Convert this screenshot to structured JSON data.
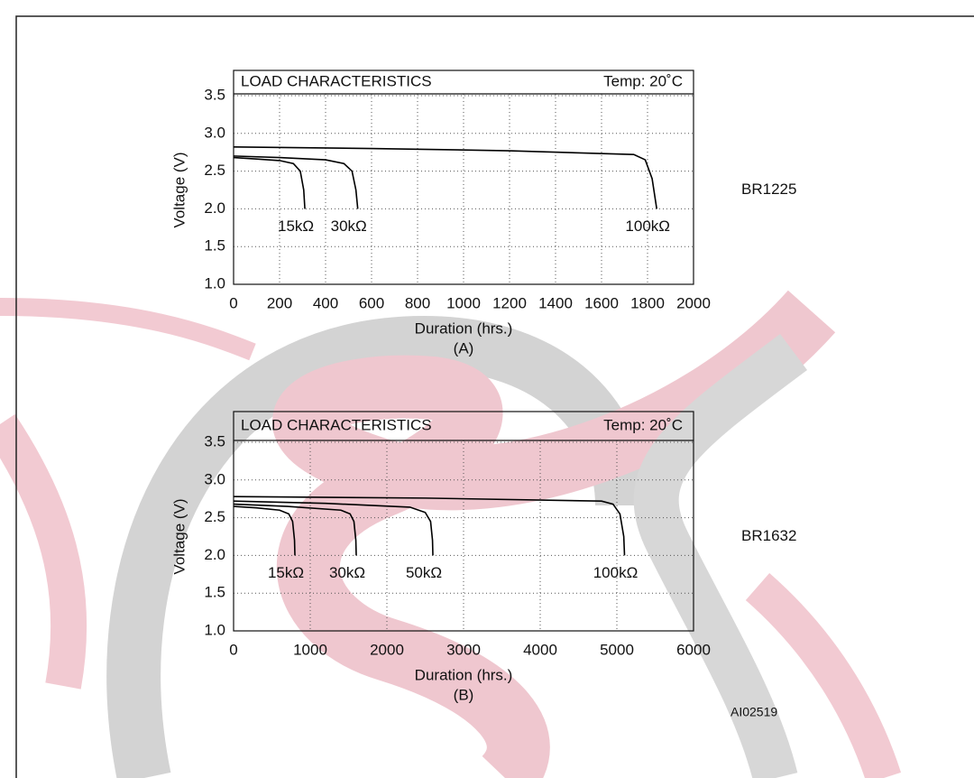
{
  "figure_id": "AI02519",
  "chart_data": [
    {
      "type": "line",
      "title": "LOAD CHARACTERISTICS",
      "annotation": "Temp: 20˚C",
      "xlabel": "Duration (hrs.)",
      "ylabel": "Voltage (V)",
      "caption": "(A)",
      "model": "BR1225",
      "xlim": [
        0,
        2000
      ],
      "xticks": [
        0,
        200,
        400,
        600,
        800,
        1000,
        1200,
        1400,
        1600,
        1800,
        2000
      ],
      "ylim": [
        1,
        3.5
      ],
      "yticks": [
        {
          "value": 1,
          "label": "1.0"
        },
        1.5,
        {
          "value": 2,
          "label": "2.0"
        },
        2.5,
        {
          "value": 3,
          "label": "3.0"
        },
        3.5
      ],
      "grid": true,
      "series": [
        {
          "name": "15kΩ",
          "color": "#000000",
          "x": [
            0,
            100,
            200,
            260,
            290,
            305,
            310
          ],
          "values": [
            2.68,
            2.66,
            2.64,
            2.6,
            2.5,
            2.25,
            2.0
          ]
        },
        {
          "name": "30kΩ",
          "color": "#000000",
          "x": [
            0,
            200,
            400,
            480,
            515,
            532,
            540
          ],
          "values": [
            2.7,
            2.68,
            2.65,
            2.6,
            2.5,
            2.25,
            2.0
          ]
        },
        {
          "name": "100kΩ",
          "color": "#000000",
          "x": [
            0,
            600,
            1200,
            1740,
            1790,
            1820,
            1840
          ],
          "values": [
            2.82,
            2.8,
            2.77,
            2.72,
            2.65,
            2.4,
            2.0
          ]
        }
      ]
    },
    {
      "type": "line",
      "title": "LOAD CHARACTERISTICS",
      "annotation": "Temp: 20˚C",
      "xlabel": "Duration (hrs.)",
      "ylabel": "Voltage (V)",
      "caption": "(B)",
      "model": "BR1632",
      "xlim": [
        0,
        6000
      ],
      "xticks": [
        0,
        1000,
        2000,
        3000,
        4000,
        5000,
        6000
      ],
      "ylim": [
        1,
        3.5
      ],
      "yticks": [
        {
          "value": 1,
          "label": "1.0"
        },
        1.5,
        {
          "value": 2,
          "label": "2.0"
        },
        2.5,
        {
          "value": 3,
          "label": "3.0"
        },
        3.5
      ],
      "grid": true,
      "series": [
        {
          "name": "15kΩ",
          "color": "#000000",
          "x": [
            0,
            300,
            600,
            720,
            770,
            795,
            800
          ],
          "values": [
            2.65,
            2.63,
            2.6,
            2.55,
            2.45,
            2.2,
            2.0
          ]
        },
        {
          "name": "30kΩ",
          "color": "#000000",
          "x": [
            0,
            700,
            1400,
            1520,
            1570,
            1595,
            1600
          ],
          "values": [
            2.68,
            2.65,
            2.6,
            2.55,
            2.45,
            2.2,
            2.0
          ]
        },
        {
          "name": "50kΩ",
          "color": "#000000",
          "x": [
            0,
            1200,
            2300,
            2500,
            2570,
            2595,
            2600
          ],
          "values": [
            2.72,
            2.69,
            2.64,
            2.57,
            2.45,
            2.2,
            2.0
          ]
        },
        {
          "name": "100kΩ",
          "color": "#000000",
          "x": [
            0,
            2500,
            4800,
            4950,
            5040,
            5090,
            5100
          ],
          "values": [
            2.78,
            2.76,
            2.72,
            2.68,
            2.55,
            2.25,
            2.0
          ]
        }
      ]
    }
  ]
}
